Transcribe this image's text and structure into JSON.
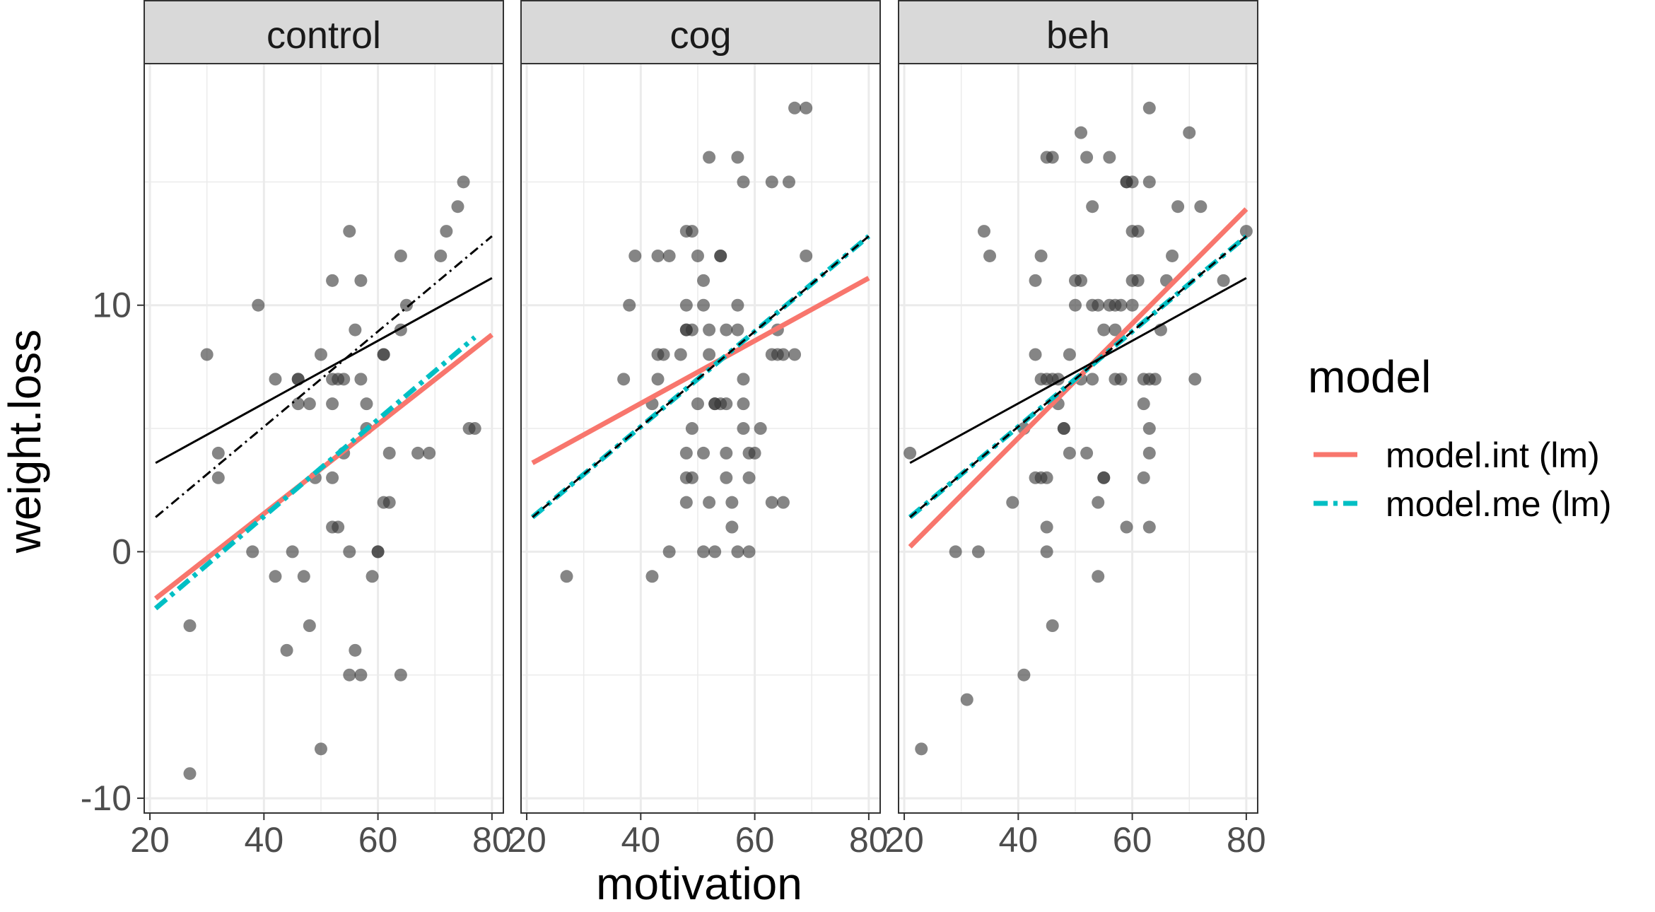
{
  "chart_data": {
    "type": "scatter",
    "xlabel": "motivation",
    "ylabel": "weight.loss",
    "xlim": [
      19,
      82
    ],
    "ylim": [
      -10.6,
      19.8
    ],
    "x_ticks": [
      20,
      40,
      60,
      80
    ],
    "x_tick_labels": [
      "20",
      "40",
      "60",
      "80"
    ],
    "y_ticks": [
      -10,
      0,
      10
    ],
    "y_tick_labels": [
      "-10",
      "0",
      "10"
    ],
    "grid": true,
    "facets": [
      "control",
      "cog",
      "beh"
    ],
    "legend": {
      "title": "model",
      "position": "right",
      "entries": [
        {
          "label": "model.int (lm)",
          "color": "#F8766D",
          "linetype": "solid"
        },
        {
          "label": "model.me (lm)",
          "color": "#00BFC4",
          "linetype": "dashdot"
        }
      ]
    },
    "colors": {
      "points": "#333333",
      "strip_bg": "#D9D9D9",
      "grid": "#EBEBEB",
      "panel_border": "#333333"
    },
    "panels": [
      {
        "name": "control",
        "points": [
          [
            27,
            -9
          ],
          [
            27,
            -3
          ],
          [
            30,
            8
          ],
          [
            32,
            4
          ],
          [
            32,
            3
          ],
          [
            38,
            0
          ],
          [
            39,
            10
          ],
          [
            42,
            7
          ],
          [
            42,
            -1
          ],
          [
            44,
            -4
          ],
          [
            45,
            0
          ],
          [
            46,
            7
          ],
          [
            46,
            7
          ],
          [
            46,
            6
          ],
          [
            47,
            -1
          ],
          [
            48,
            -3
          ],
          [
            48,
            6
          ],
          [
            49,
            3
          ],
          [
            50,
            8
          ],
          [
            50,
            -8
          ],
          [
            52,
            11
          ],
          [
            52,
            7
          ],
          [
            52,
            6
          ],
          [
            52,
            3
          ],
          [
            52,
            1
          ],
          [
            53,
            1
          ],
          [
            53,
            7
          ],
          [
            54,
            4
          ],
          [
            54,
            7
          ],
          [
            55,
            -5
          ],
          [
            55,
            13
          ],
          [
            55,
            0
          ],
          [
            56,
            9
          ],
          [
            56,
            -4
          ],
          [
            57,
            11
          ],
          [
            57,
            7
          ],
          [
            57,
            -5
          ],
          [
            58,
            6
          ],
          [
            58,
            5
          ],
          [
            59,
            -1
          ],
          [
            60,
            0
          ],
          [
            60,
            0
          ],
          [
            61,
            8
          ],
          [
            61,
            8
          ],
          [
            61,
            2
          ],
          [
            62,
            2
          ],
          [
            62,
            4
          ],
          [
            64,
            12
          ],
          [
            64,
            9
          ],
          [
            64,
            -5
          ],
          [
            65,
            10
          ],
          [
            67,
            4
          ],
          [
            69,
            4
          ],
          [
            71,
            12
          ],
          [
            72,
            13
          ],
          [
            74,
            14
          ],
          [
            75,
            15
          ],
          [
            76,
            5
          ],
          [
            77,
            5
          ]
        ],
        "lines": [
          {
            "series": "model.int (lm)",
            "x": [
              21,
              80
            ],
            "y": [
              -1.9,
              8.8
            ]
          },
          {
            "series": "model.me (lm)",
            "x": [
              21,
              77
            ],
            "y": [
              -2.3,
              8.7
            ]
          },
          {
            "series": "black-solid",
            "x": [
              21,
              80
            ],
            "y": [
              3.6,
              11.1
            ]
          },
          {
            "series": "black-dashdot",
            "x": [
              21,
              80
            ],
            "y": [
              1.4,
              12.8
            ]
          }
        ]
      },
      {
        "name": "cog",
        "points": [
          [
            27,
            -1
          ],
          [
            37,
            7
          ],
          [
            38,
            10
          ],
          [
            39,
            12
          ],
          [
            42,
            6
          ],
          [
            42,
            -1
          ],
          [
            43,
            12
          ],
          [
            43,
            8
          ],
          [
            44,
            8
          ],
          [
            43,
            7
          ],
          [
            45,
            12
          ],
          [
            45,
            0
          ],
          [
            47,
            8
          ],
          [
            48,
            13
          ],
          [
            48,
            10
          ],
          [
            48,
            9
          ],
          [
            48,
            9
          ],
          [
            48,
            4
          ],
          [
            48,
            3
          ],
          [
            48,
            2
          ],
          [
            49,
            9
          ],
          [
            49,
            5
          ],
          [
            49,
            3
          ],
          [
            49,
            13
          ],
          [
            50,
            12
          ],
          [
            50,
            6
          ],
          [
            51,
            4
          ],
          [
            51,
            0
          ],
          [
            51,
            11
          ],
          [
            51,
            10
          ],
          [
            52,
            16
          ],
          [
            52,
            9
          ],
          [
            52,
            8
          ],
          [
            52,
            2
          ],
          [
            53,
            6
          ],
          [
            53,
            6
          ],
          [
            53,
            0
          ],
          [
            54,
            12
          ],
          [
            54,
            12
          ],
          [
            54,
            6
          ],
          [
            55,
            6
          ],
          [
            55,
            9
          ],
          [
            55,
            4
          ],
          [
            55,
            3
          ],
          [
            56,
            2
          ],
          [
            56,
            1
          ],
          [
            57,
            10
          ],
          [
            57,
            9
          ],
          [
            57,
            16
          ],
          [
            57,
            0
          ],
          [
            58,
            15
          ],
          [
            58,
            7
          ],
          [
            58,
            6
          ],
          [
            58,
            5
          ],
          [
            59,
            4
          ],
          [
            59,
            3
          ],
          [
            59,
            0
          ],
          [
            60,
            4
          ],
          [
            61,
            5
          ],
          [
            63,
            15
          ],
          [
            63,
            8
          ],
          [
            63,
            2
          ],
          [
            64,
            9
          ],
          [
            64,
            8
          ],
          [
            65,
            8
          ],
          [
            65,
            2
          ],
          [
            66,
            15
          ],
          [
            67,
            8
          ],
          [
            67,
            18
          ],
          [
            69,
            18
          ],
          [
            69,
            12
          ]
        ],
        "lines": [
          {
            "series": "model.int (lm)",
            "x": [
              21,
              80
            ],
            "y": [
              3.6,
              11.1
            ]
          },
          {
            "series": "model.me (lm)",
            "x": [
              21,
              80
            ],
            "y": [
              1.4,
              12.8
            ]
          },
          {
            "series": "black-dashed",
            "x": [
              21,
              80
            ],
            "y": [
              1.4,
              12.8
            ]
          }
        ]
      },
      {
        "name": "beh",
        "points": [
          [
            21,
            4
          ],
          [
            23,
            -8
          ],
          [
            29,
            0
          ],
          [
            31,
            -6
          ],
          [
            33,
            0
          ],
          [
            34,
            13
          ],
          [
            35,
            12
          ],
          [
            39,
            2
          ],
          [
            41,
            -5
          ],
          [
            41,
            5
          ],
          [
            43,
            11
          ],
          [
            43,
            8
          ],
          [
            43,
            3
          ],
          [
            44,
            12
          ],
          [
            44,
            7
          ],
          [
            44,
            3
          ],
          [
            45,
            16
          ],
          [
            45,
            7
          ],
          [
            45,
            3
          ],
          [
            45,
            1
          ],
          [
            45,
            0
          ],
          [
            46,
            16
          ],
          [
            46,
            7
          ],
          [
            46,
            -3
          ],
          [
            47,
            7
          ],
          [
            47,
            6
          ],
          [
            48,
            5
          ],
          [
            48,
            5
          ],
          [
            49,
            4
          ],
          [
            49,
            8
          ],
          [
            50,
            11
          ],
          [
            50,
            10
          ],
          [
            51,
            17
          ],
          [
            51,
            11
          ],
          [
            51,
            7
          ],
          [
            52,
            4
          ],
          [
            52,
            16
          ],
          [
            53,
            7
          ],
          [
            53,
            14
          ],
          [
            53,
            10
          ],
          [
            54,
            2
          ],
          [
            54,
            -1
          ],
          [
            54,
            10
          ],
          [
            55,
            9
          ],
          [
            55,
            3
          ],
          [
            55,
            3
          ],
          [
            56,
            10
          ],
          [
            56,
            16
          ],
          [
            57,
            10
          ],
          [
            57,
            7
          ],
          [
            57,
            9
          ],
          [
            58,
            10
          ],
          [
            58,
            7
          ],
          [
            59,
            15
          ],
          [
            59,
            1
          ],
          [
            59,
            15
          ],
          [
            60,
            15
          ],
          [
            60,
            13
          ],
          [
            60,
            11
          ],
          [
            60,
            10
          ],
          [
            61,
            13
          ],
          [
            61,
            11
          ],
          [
            62,
            6
          ],
          [
            62,
            7
          ],
          [
            62,
            3
          ],
          [
            63,
            5
          ],
          [
            63,
            4
          ],
          [
            63,
            7
          ],
          [
            63,
            1
          ],
          [
            63,
            18
          ],
          [
            63,
            15
          ],
          [
            64,
            7
          ],
          [
            65,
            9
          ],
          [
            66,
            11
          ],
          [
            67,
            12
          ],
          [
            68,
            14
          ],
          [
            70,
            17
          ],
          [
            71,
            7
          ],
          [
            72,
            14
          ],
          [
            76,
            11
          ],
          [
            80,
            13
          ]
        ],
        "lines": [
          {
            "series": "model.int (lm)",
            "x": [
              21,
              80
            ],
            "y": [
              0.2,
              13.9
            ]
          },
          {
            "series": "model.me (lm)",
            "x": [
              21,
              80
            ],
            "y": [
              1.4,
              12.8
            ]
          },
          {
            "series": "black-solid",
            "x": [
              21,
              80
            ],
            "y": [
              3.6,
              11.1
            ]
          },
          {
            "series": "black-dashed",
            "x": [
              21,
              80
            ],
            "y": [
              1.4,
              12.8
            ]
          }
        ]
      }
    ]
  }
}
